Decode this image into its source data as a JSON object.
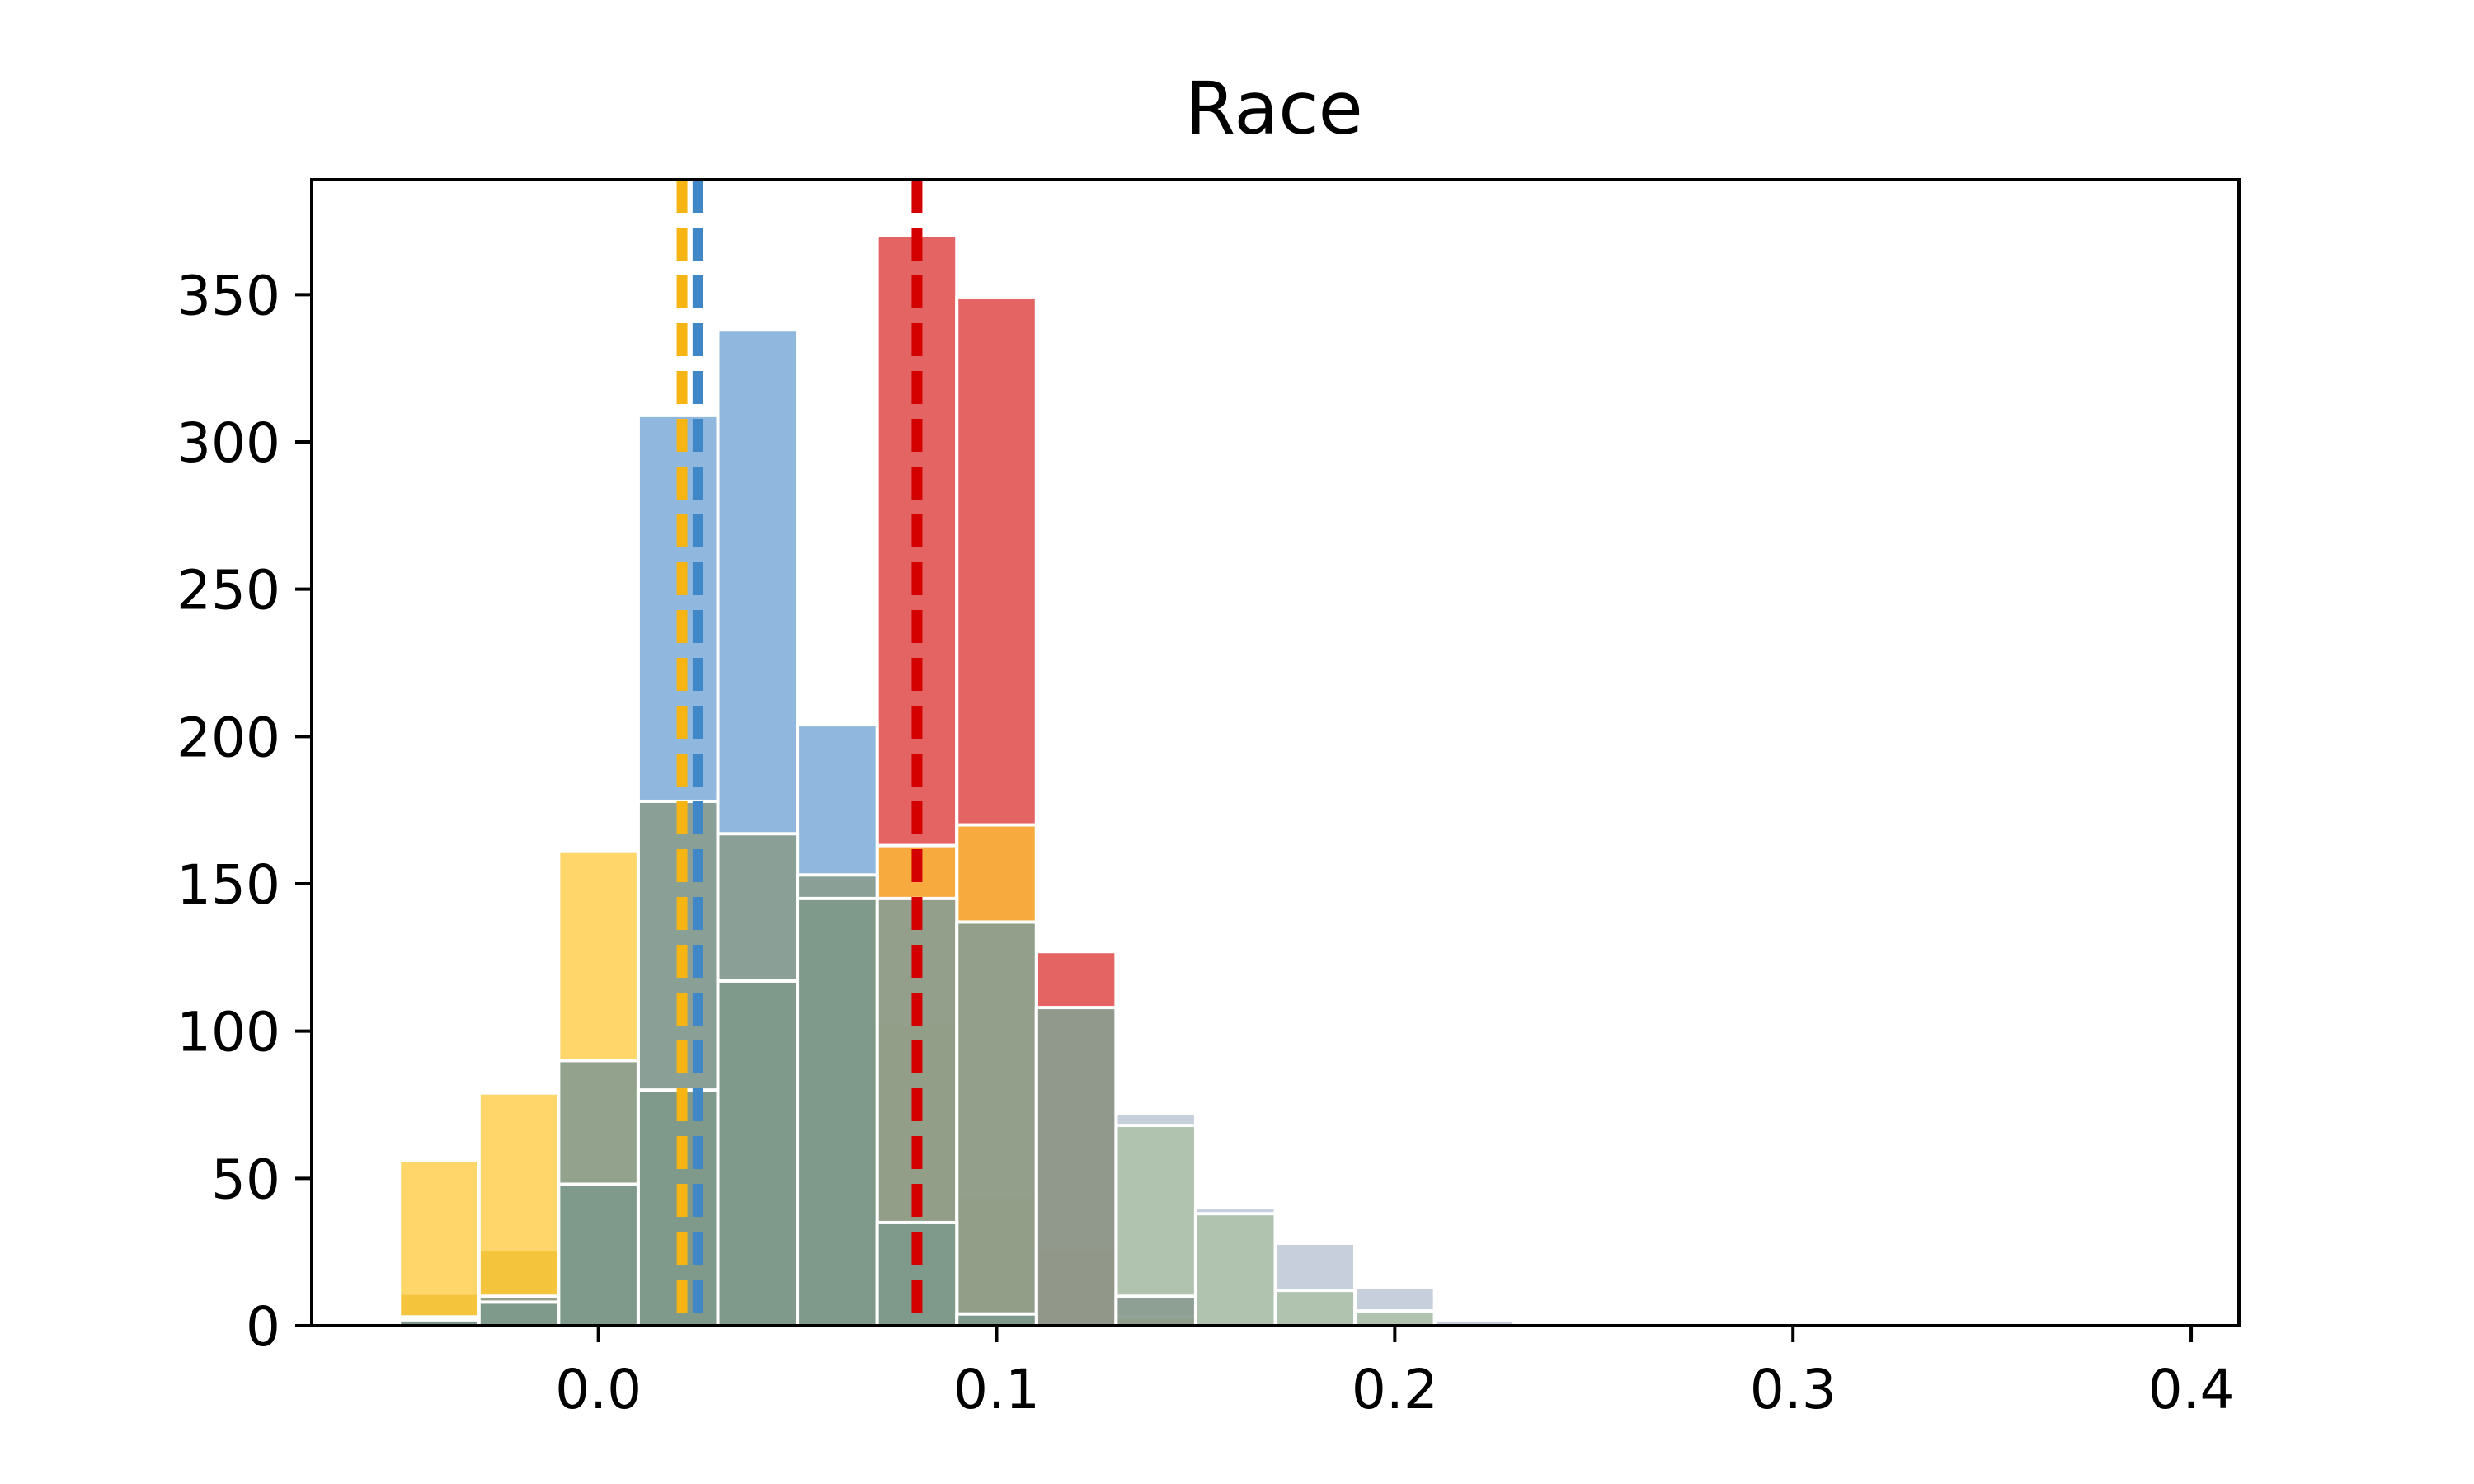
{
  "chart_data": {
    "type": "bar",
    "title": "Race",
    "xlabel": "",
    "ylabel": "",
    "xlim": [
      -0.072,
      0.412
    ],
    "ylim": [
      0,
      389
    ],
    "bin_width": 0.02,
    "x_ticks": [
      {
        "value": 0.0,
        "label": "0.0"
      },
      {
        "value": 0.1,
        "label": "0.1"
      },
      {
        "value": 0.2,
        "label": "0.2"
      },
      {
        "value": 0.3,
        "label": "0.3"
      },
      {
        "value": 0.4,
        "label": "0.4"
      }
    ],
    "y_ticks": [
      {
        "value": 0,
        "label": "0"
      },
      {
        "value": 50,
        "label": "50"
      },
      {
        "value": 100,
        "label": "100"
      },
      {
        "value": 150,
        "label": "150"
      },
      {
        "value": 200,
        "label": "200"
      },
      {
        "value": 250,
        "label": "250"
      },
      {
        "value": 300,
        "label": "300"
      },
      {
        "value": 350,
        "label": "350"
      }
    ],
    "bin_starts": [
      -0.05,
      -0.03,
      -0.01,
      0.01,
      0.03,
      0.05,
      0.07,
      0.09,
      0.11,
      0.13,
      0.15,
      0.17,
      0.19,
      0.21
    ],
    "series": [
      {
        "color": "#97a8bd",
        "opacity": 0.55,
        "values": [
          0,
          0,
          0,
          0,
          0,
          0,
          0,
          0,
          0,
          72,
          40,
          28,
          13,
          2
        ]
      },
      {
        "color": "#9db98a",
        "opacity": 0.55,
        "values": [
          0,
          0,
          0,
          0,
          0,
          0,
          0,
          0,
          0,
          68,
          38,
          12,
          5,
          0
        ]
      },
      {
        "color": "#d6b240",
        "opacity": 0.85,
        "values": [
          11,
          26,
          0,
          0,
          0,
          0,
          102,
          44,
          26,
          3,
          0,
          0,
          0,
          0
        ]
      },
      {
        "color": "#dd3d3d",
        "opacity": 0.8,
        "values": [
          0,
          0,
          0,
          0,
          0,
          0,
          370,
          349,
          127,
          0,
          0,
          0,
          0,
          0
        ]
      },
      {
        "color": "#fec630",
        "opacity": 0.72,
        "values": [
          56,
          79,
          161,
          82,
          118,
          130,
          163,
          170,
          0,
          0,
          0,
          0,
          0,
          0
        ]
      },
      {
        "color": "#5b97cf",
        "opacity": 0.68,
        "values": [
          0,
          0,
          0,
          309,
          338,
          204,
          0,
          0,
          0,
          0,
          0,
          0,
          0,
          0
        ]
      },
      {
        "color": "#8a9d90",
        "opacity": 0.92,
        "values": [
          3,
          10,
          90,
          178,
          167,
          153,
          145,
          137,
          108,
          10,
          0,
          0,
          0,
          0
        ]
      },
      {
        "color": "#7f9a8a",
        "opacity": 1.0,
        "values": [
          2,
          8,
          48,
          80,
          117,
          145,
          35,
          4,
          0,
          0,
          0,
          0,
          0,
          0
        ]
      }
    ],
    "mean_lines": [
      {
        "x": 0.021,
        "color": "#f7b514"
      },
      {
        "x": 0.025,
        "color": "#3f87c6"
      },
      {
        "x": 0.08,
        "color": "#d40000"
      }
    ],
    "grid": false,
    "legend": "none"
  }
}
